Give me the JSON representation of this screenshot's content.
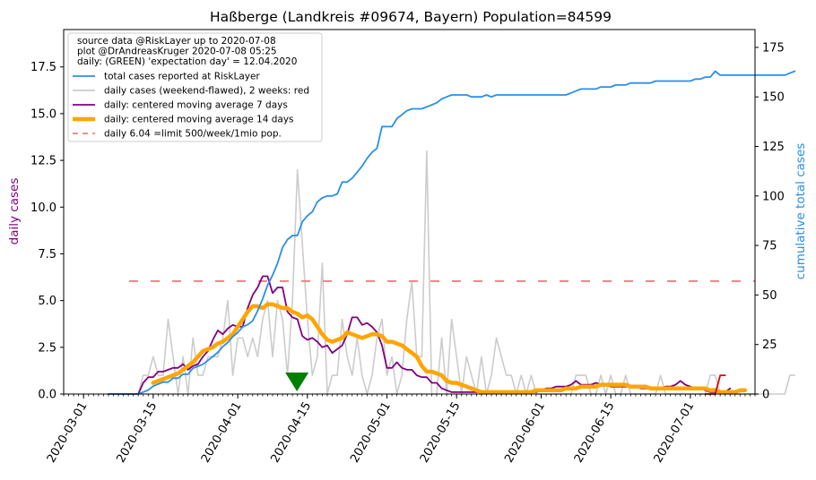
{
  "chart_data": {
    "type": "line",
    "title": "Haßberge (Landkreis #09674, Bayern) Population=84599",
    "ylabel_left": "daily cases",
    "ylabel_right": "cumulative total cases",
    "ylim_left": [
      0,
      19.5
    ],
    "ylim_right": [
      0,
      184
    ],
    "xlim": [
      "2020-02-26",
      "2020-07-14"
    ],
    "yticks_left": [
      "0.0",
      "2.5",
      "5.0",
      "7.5",
      "10.0",
      "12.5",
      "15.0",
      "17.5"
    ],
    "yticks_right": [
      "0",
      "25",
      "50",
      "75",
      "100",
      "125",
      "150",
      "175"
    ],
    "xticks": [
      "2020-03-01",
      "2020-03-15",
      "2020-04-01",
      "2020-04-15",
      "2020-05-01",
      "2020-05-15",
      "2020-06-01",
      "2020-06-15",
      "2020-07-01"
    ],
    "info_lines": [
      "source data @RiskLayer up to 2020-07-08",
      "plot @DrAndreasKruger 2020-07-08 05:25",
      "daily: (GREEN) 'expectation day' = 12.04.2020"
    ],
    "legend": [
      "total cases reported at RiskLayer",
      "daily cases (weekend-flawed), 2 weeks: red",
      "daily: centered moving average 7 days",
      "daily: centered moving average 14 days",
      "daily 6.04 =limit 500/week/1mio pop."
    ],
    "legend_position": "upper-left",
    "colors": {
      "total": "#2a8fe8",
      "daily": "#cccccc",
      "recent": "#dd0000",
      "ma7": "#800080",
      "ma14": "#ffa500",
      "limit": "#ee8080",
      "marker": "#008000",
      "left_axis_label": "#800080",
      "right_axis_label": "#2a8fe8"
    },
    "limit_value": 6.04,
    "expectation_day": "2020-04-12",
    "start_date": "2020-03-06",
    "total_cases": [
      0,
      0,
      0,
      0,
      0,
      0,
      0,
      1,
      2,
      4,
      5,
      6,
      6,
      8,
      8,
      10,
      10,
      13,
      14,
      15,
      17,
      19,
      21,
      24,
      26,
      29,
      31,
      34,
      35,
      37,
      42,
      48,
      55,
      60,
      66,
      74,
      78,
      80,
      80,
      87,
      90,
      92,
      97,
      99,
      100,
      100,
      101,
      107,
      107,
      109,
      112,
      115,
      119,
      122,
      124,
      135,
      135,
      135,
      139,
      141,
      143,
      144,
      144,
      144,
      145,
      146,
      147,
      149,
      150,
      151,
      151,
      151,
      151,
      150,
      150,
      150,
      151,
      150,
      151,
      151,
      151,
      151,
      151,
      151,
      151,
      151,
      151,
      151,
      151,
      151,
      151,
      151,
      151,
      152,
      153,
      154,
      154,
      154,
      154,
      155,
      155,
      155,
      156,
      156,
      156,
      157,
      157,
      157,
      157,
      157,
      158,
      158,
      158,
      158,
      158,
      158,
      158,
      158,
      159,
      159,
      160,
      160,
      163,
      161,
      161,
      161,
      161,
      161,
      161,
      161,
      161,
      161,
      161,
      161,
      161,
      161,
      161,
      162,
      163
    ],
    "daily_cases": [
      0,
      0,
      0,
      0,
      0,
      0,
      0,
      1,
      1,
      2,
      1,
      1,
      4,
      2,
      0,
      2,
      0,
      3,
      1,
      1,
      2,
      2,
      2,
      3,
      5,
      1,
      3,
      3,
      2,
      3,
      2,
      4,
      5,
      2,
      5,
      4,
      1,
      5,
      12,
      8,
      4,
      1,
      2,
      7,
      0,
      1,
      1,
      4,
      2,
      1,
      3,
      1,
      0,
      1,
      3,
      4,
      1,
      2,
      0,
      1,
      4,
      6,
      2,
      2,
      13,
      0,
      0,
      3,
      0,
      4,
      2,
      0,
      2,
      1,
      0,
      2,
      0,
      1,
      3,
      2,
      1,
      1,
      0,
      1,
      0,
      1,
      0,
      0,
      0,
      0,
      0,
      0,
      0,
      0,
      1,
      1,
      1,
      0,
      0,
      1,
      0,
      1,
      0,
      0,
      1,
      0,
      0,
      0,
      0,
      0,
      0,
      1,
      0,
      0,
      0,
      0,
      0,
      0,
      0,
      0,
      0,
      1,
      1,
      0,
      0,
      0,
      0,
      0,
      0,
      0,
      0,
      0,
      0,
      0,
      0,
      0,
      0,
      1,
      1
    ],
    "ma7": [
      0,
      0,
      0,
      0,
      0,
      0,
      0,
      0.6,
      0.9,
      0.9,
      1.2,
      1.2,
      1.3,
      1.4,
      1.4,
      1.6,
      1.3,
      1.5,
      1.6,
      2,
      2.3,
      2.9,
      3.4,
      3.2,
      3.5,
      3.7,
      3.6,
      3.6,
      4.6,
      5.3,
      5.7,
      6.3,
      6.3,
      5.4,
      5.7,
      5.7,
      4.4,
      4.1,
      4.0,
      3.1,
      2.9,
      3.0,
      2.8,
      2.5,
      2.6,
      2.2,
      2.4,
      2.6,
      3.2,
      4.1,
      4.1,
      3.7,
      3.8,
      3.6,
      3.3,
      2.6,
      1.4,
      1.4,
      1.7,
      1.4,
      1.3,
      1.3,
      1.0,
      0.9,
      0.9,
      0.6,
      0.6,
      0.3,
      0.2,
      0.1,
      0.1,
      0.1,
      0.1,
      0.1,
      0.1,
      0.1,
      0.1,
      0.1,
      0.1,
      0.1,
      0.1,
      0.1,
      0.1,
      0.1,
      0.1,
      0.1,
      0.1,
      0.2,
      0.3,
      0.3,
      0.4,
      0.4,
      0.4,
      0.5,
      0.7,
      0.5,
      0.5,
      0.5,
      0.6,
      0.5,
      0.5,
      0.4,
      0.4,
      0.4,
      0.4,
      0.4,
      0.4,
      0.3,
      0.3,
      0.3,
      0.3,
      0.3,
      0.4,
      0.4,
      0.5,
      0.7,
      0.5,
      0.4,
      0.3,
      0.3,
      0.2,
      0.1,
      0.1,
      0.1,
      0.1,
      0.3
    ],
    "ma14": [
      0.6,
      0.7,
      0.8,
      0.9,
      1.0,
      1.1,
      1.3,
      1.5,
      1.7,
      2.0,
      2.3,
      2.4,
      2.5,
      2.7,
      2.8,
      3.0,
      3.2,
      3.6,
      4.0,
      4.4,
      4.7,
      4.7,
      4.6,
      4.8,
      4.8,
      4.7,
      4.6,
      4.6,
      4.4,
      4.3,
      4.1,
      4.2,
      4.0,
      3.6,
      3.2,
      2.9,
      2.8,
      2.9,
      3.0,
      3.3,
      3.2,
      3.1,
      3.0,
      3.1,
      3.2,
      3.2,
      3.1,
      2.8,
      2.8,
      2.7,
      2.6,
      2.4,
      2.2,
      2.0,
      1.5,
      1.2,
      1.2,
      1.1,
      1.0,
      0.7,
      0.6,
      0.6,
      0.5,
      0.4,
      0.3,
      0.2,
      0.1,
      0.1,
      0.1,
      0.1,
      0.1,
      0.1,
      0.1,
      0.1,
      0.1,
      0.1,
      0.1,
      0.2,
      0.2,
      0.2,
      0.2,
      0.2,
      0.2,
      0.3,
      0.3,
      0.3,
      0.4,
      0.4,
      0.4,
      0.4,
      0.5,
      0.5,
      0.5,
      0.5,
      0.5,
      0.5,
      0.4,
      0.4,
      0.4,
      0.4,
      0.3,
      0.3,
      0.3,
      0.3,
      0.3,
      0.3,
      0.3,
      0.3,
      0.3,
      0.3,
      0.3,
      0.3,
      0.2,
      0.2,
      0.1,
      0.1,
      0.1,
      0.1,
      0.2,
      0.2
    ],
    "ma14_start": "2020-03-15",
    "recent_daily": [
      0,
      0,
      0,
      1,
      1
    ],
    "recent_start": "2020-07-04"
  }
}
